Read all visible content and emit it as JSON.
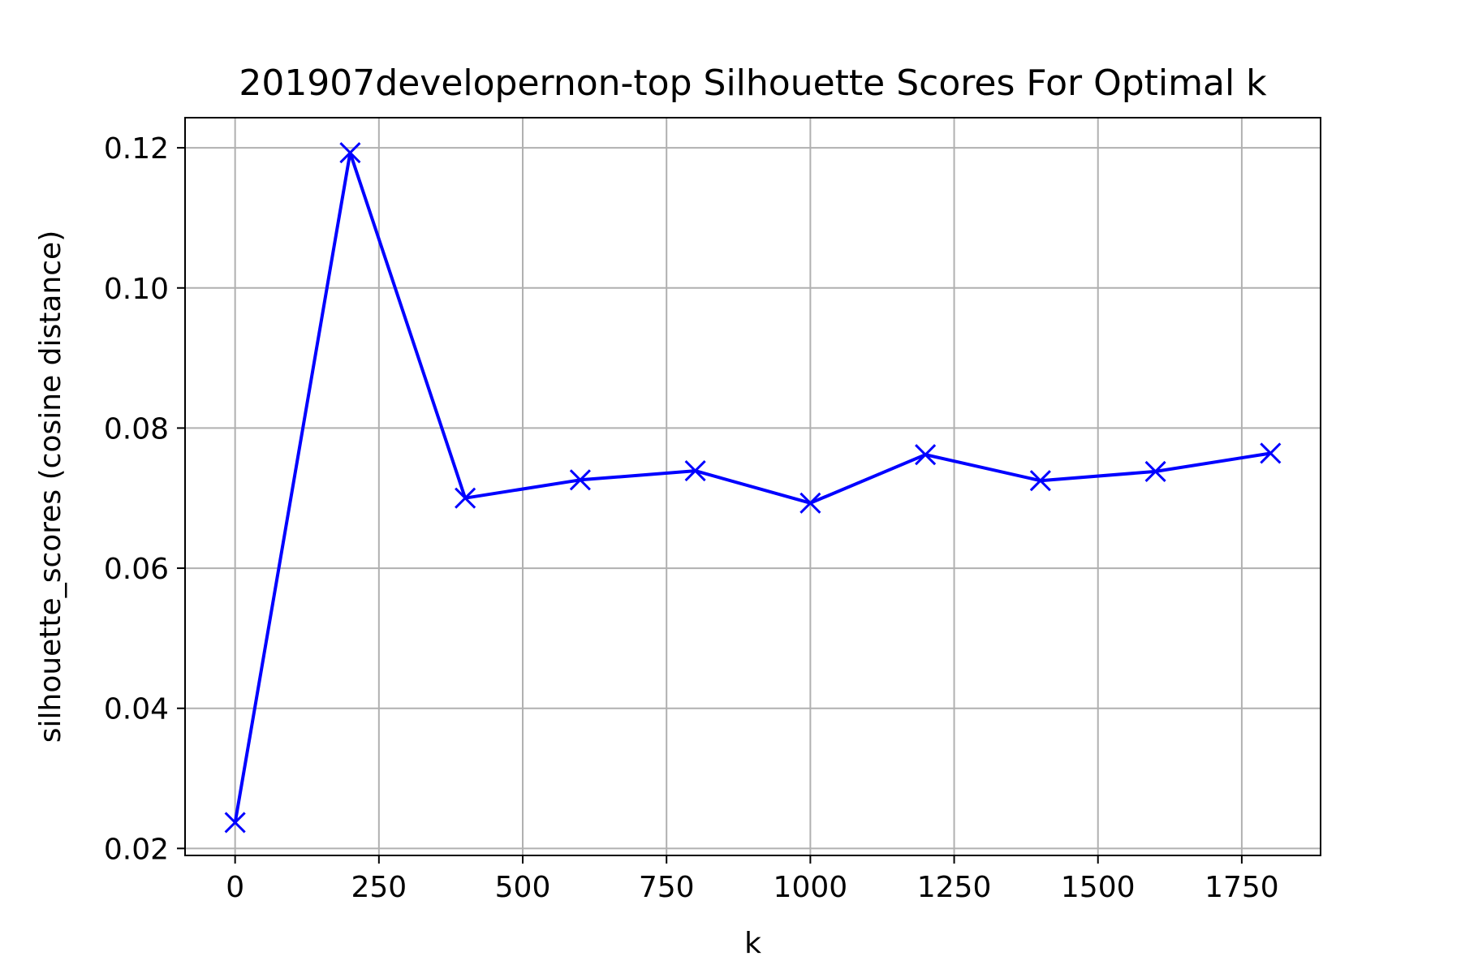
{
  "chart_data": {
    "type": "line",
    "title": "201907developernon-top Silhouette Scores For Optimal k",
    "xlabel": "k",
    "ylabel": "silhouette_scores (cosine distance)",
    "xlim": [
      -87,
      1887
    ],
    "ylim": [
      0.019,
      0.1243
    ],
    "x_ticks": [
      0,
      250,
      500,
      750,
      1000,
      1250,
      1500,
      1750
    ],
    "x_tick_labels": [
      "0",
      "250",
      "500",
      "750",
      "1000",
      "1250",
      "1500",
      "1750"
    ],
    "y_ticks": [
      0.02,
      0.04,
      0.06,
      0.08,
      0.1,
      0.12
    ],
    "y_tick_labels": [
      "0.02",
      "0.04",
      "0.06",
      "0.08",
      "0.10",
      "0.12"
    ],
    "grid": true,
    "marker": "x",
    "color": "#0000ff",
    "series": [
      {
        "x": [
          0,
          200,
          400,
          600,
          800,
          1000,
          1200,
          1400,
          1600,
          1800
        ],
        "y": [
          0.0237,
          0.1193,
          0.07,
          0.0726,
          0.0739,
          0.0693,
          0.0762,
          0.0725,
          0.0738,
          0.0764
        ]
      }
    ]
  }
}
